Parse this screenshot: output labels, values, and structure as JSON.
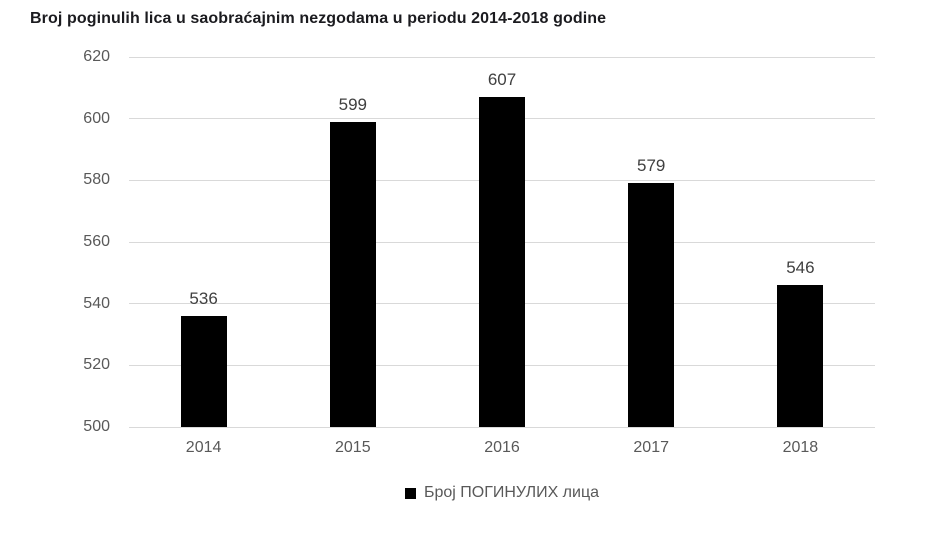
{
  "chart_data": {
    "type": "bar",
    "title": "Broj poginulih lica u saobraćajnim nezgodama u periodu 2014-2018 godine",
    "categories": [
      "2014",
      "2015",
      "2016",
      "2017",
      "2018"
    ],
    "series": [
      {
        "name": "Број ПОГИНУЛИХ лица",
        "values": [
          536,
          599,
          607,
          579,
          546
        ]
      }
    ],
    "data_labels_shown": true,
    "xlabel": "",
    "ylabel": "",
    "ylim": [
      500,
      620
    ],
    "yticks": [
      500,
      520,
      540,
      560,
      580,
      600,
      620
    ],
    "grid": true,
    "legend_position": "bottom",
    "colors": {
      "bar": "#000000",
      "gridline": "#d9d9d9",
      "tick_label": "#595959",
      "data_label": "#404040",
      "title": "#1b1b1f",
      "background": "#ffffff"
    }
  }
}
